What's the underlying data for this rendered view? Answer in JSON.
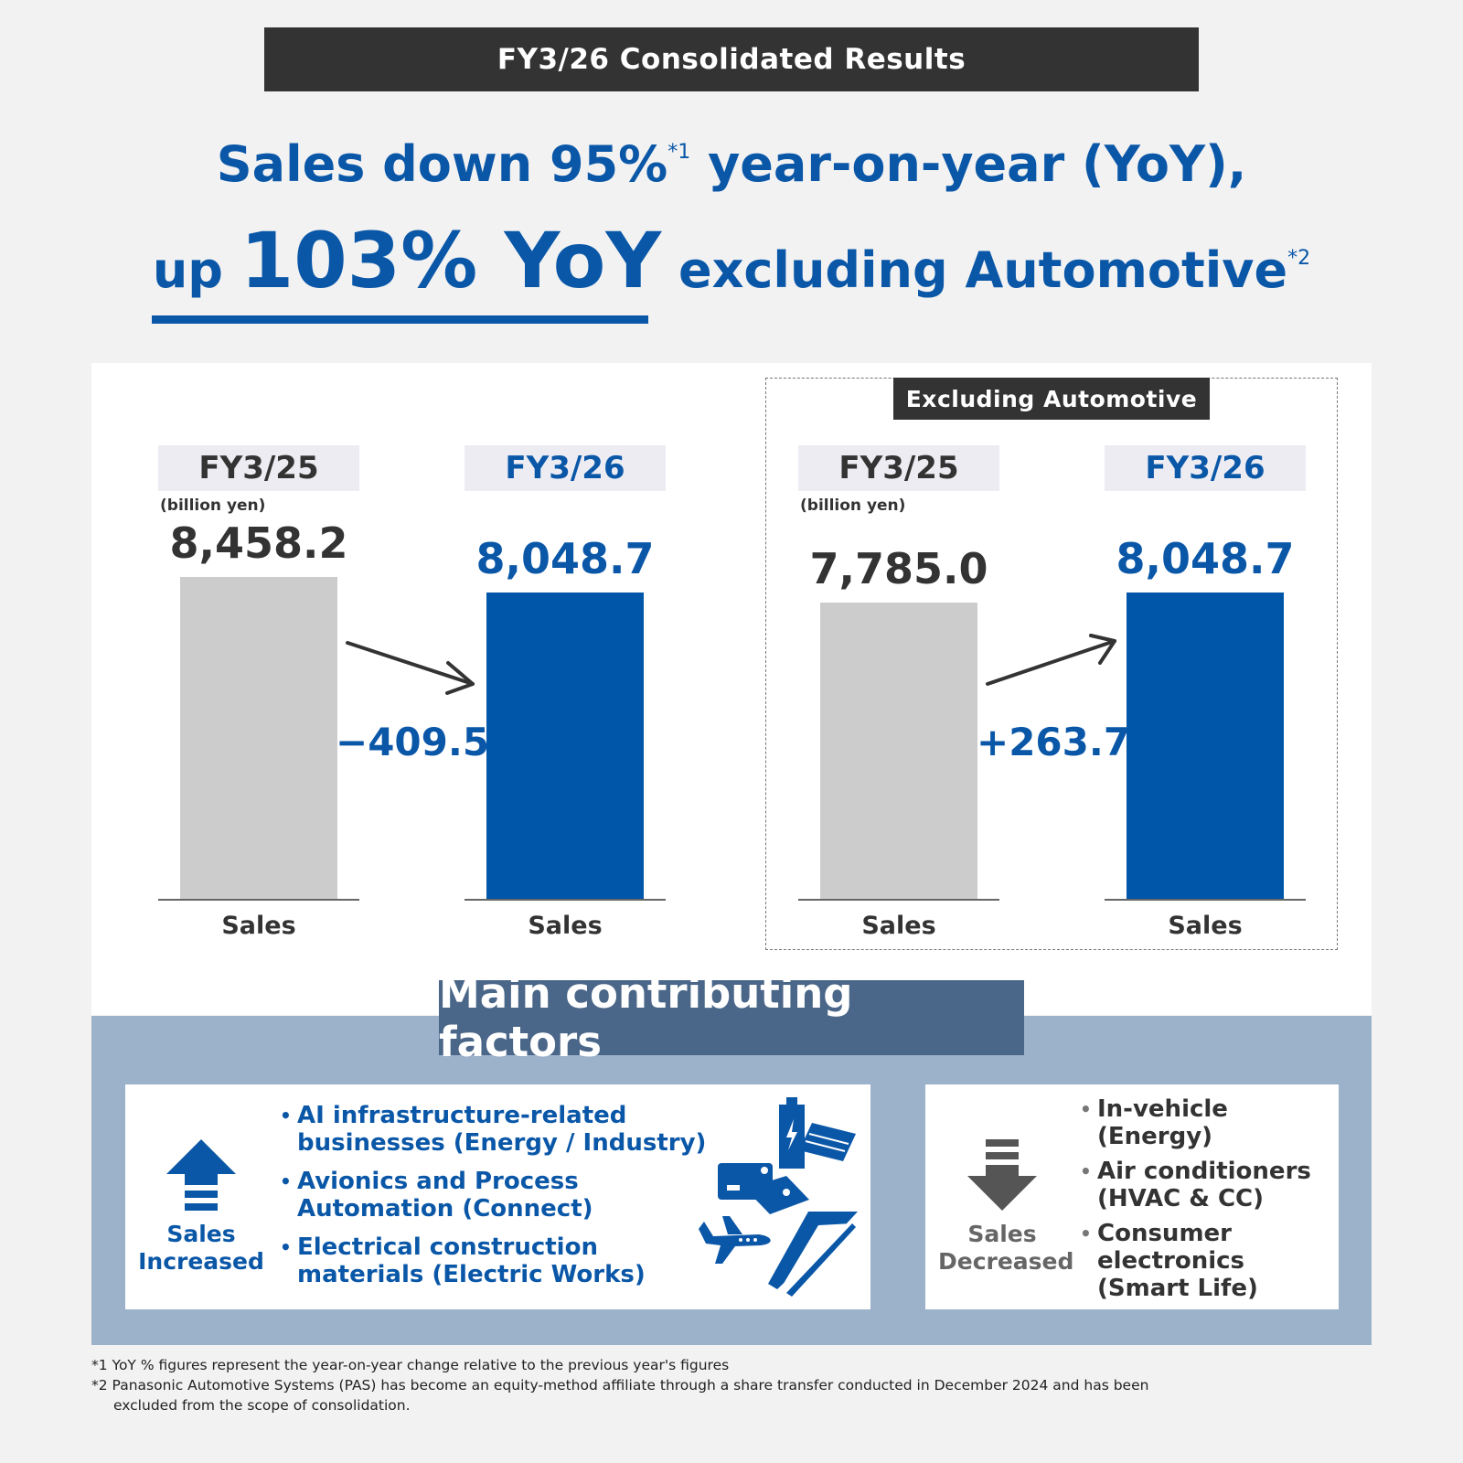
{
  "banner": "FY3/26 Consolidated Results",
  "headline": {
    "line1": "Sales down 95%",
    "line1_sup": "*1",
    "line1_rest": " year-on-year (YoY),",
    "line2_pre": "up ",
    "line2_big": "103% YoY",
    "line2_rest": " excluding Automotive",
    "line2_sup": "*2"
  },
  "excluding_label": "Excluding Automotive",
  "colors": {
    "prev_bar": "#cccccc",
    "cur_bar": "#0056a8",
    "accent": "#0a57a8",
    "dark": "#333333"
  },
  "chart_data": [
    {
      "type": "bar",
      "unit": "(billion yen)",
      "categories": [
        "FY3/25",
        "FY3/26"
      ],
      "category_axis_label": "Sales",
      "values": [
        8458.2,
        8048.7
      ],
      "value_labels": [
        "8,458.2",
        "8,048.7"
      ],
      "change_label": "−409.5",
      "ylim": [
        0,
        8458.2
      ]
    },
    {
      "type": "bar",
      "group_label": "Excluding Automotive",
      "unit": "(billion yen)",
      "categories": [
        "FY3/25",
        "FY3/26"
      ],
      "category_axis_label": "Sales",
      "values": [
        7785.0,
        8048.7
      ],
      "value_labels": [
        "7,785.0",
        "8,048.7"
      ],
      "change_label": "+263.7",
      "ylim": [
        0,
        8458.2
      ]
    }
  ],
  "factors": {
    "title": "Main contributing factors",
    "increased": {
      "label_line1": "Sales",
      "label_line2": "Increased",
      "items": [
        {
          "line1": "AI infrastructure-related",
          "line2": "businesses (Energy / Industry)"
        },
        {
          "line1": "Avionics and Process",
          "line2": "Automation (Connect)"
        },
        {
          "line1": "Electrical construction",
          "line2": "materials (Electric Works)"
        }
      ],
      "icons": [
        "battery-icon",
        "battery-cell-icon",
        "battery-pack-icon",
        "airplane-icon",
        "wiring-duct-icon"
      ]
    },
    "decreased": {
      "label_line1": "Sales",
      "label_line2": "Decreased",
      "items": [
        {
          "line1": "In-vehicle",
          "line2": "(Energy)"
        },
        {
          "line1": "Air conditioners",
          "line2": "(HVAC & CC)"
        },
        {
          "line1": "Consumer",
          "line2": "electronics",
          "line3": "(Smart Life)"
        }
      ]
    }
  },
  "footnotes": {
    "fn1": "*1 YoY % figures represent the year-on-year change relative to the previous year's figures",
    "fn2_line1": "*2 Panasonic Automotive Systems (PAS) has become an equity-method affiliate through a share transfer conducted in December 2024 and has been",
    "fn2_line2": "excluded from the scope of consolidation."
  }
}
